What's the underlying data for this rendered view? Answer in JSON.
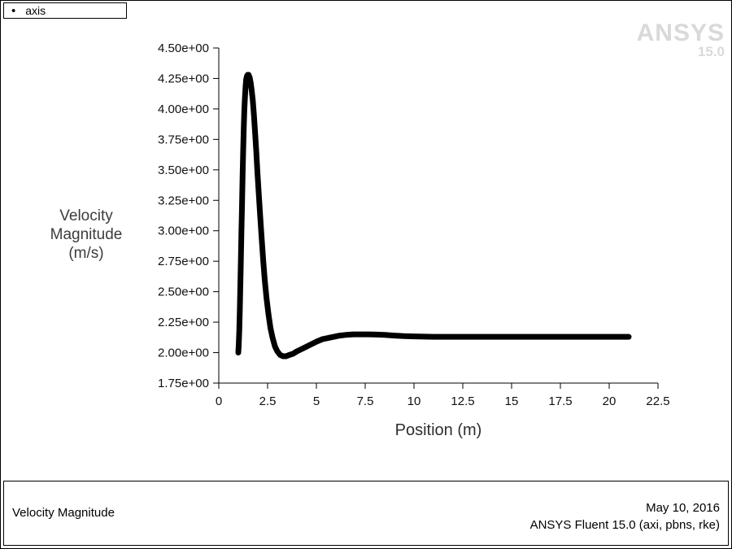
{
  "legend": {
    "marker": "•",
    "series_label": "axis"
  },
  "watermark": {
    "line1": "ANSYS",
    "line2": "15.0"
  },
  "axes": {
    "y_label_lines": [
      "Velocity",
      "Magnitude",
      "(m/s)"
    ],
    "x_label": "Position (m)",
    "y_ticks": [
      "1.75e+00",
      "2.00e+00",
      "2.25e+00",
      "2.50e+00",
      "2.75e+00",
      "3.00e+00",
      "3.25e+00",
      "3.50e+00",
      "3.75e+00",
      "4.00e+00",
      "4.25e+00",
      "4.50e+00"
    ],
    "x_ticks": [
      "0",
      "2.5",
      "5",
      "7.5",
      "10",
      "12.5",
      "15",
      "17.5",
      "20",
      "22.5"
    ]
  },
  "footer": {
    "left": "Velocity Magnitude",
    "date": "May 10, 2016",
    "app": "ANSYS Fluent 15.0 (axi, pbns, rke)"
  },
  "chart_data": {
    "type": "line",
    "title": "Velocity Magnitude",
    "xlabel": "Position (m)",
    "ylabel": "Velocity Magnitude (m/s)",
    "xlim": [
      0,
      22.5
    ],
    "ylim": [
      1.75,
      4.5
    ],
    "grid": false,
    "legend_position": "top-left",
    "x_tick_values": [
      0,
      2.5,
      5,
      7.5,
      10,
      12.5,
      15,
      17.5,
      20,
      22.5
    ],
    "y_tick_values": [
      1.75,
      2.0,
      2.25,
      2.5,
      2.75,
      3.0,
      3.25,
      3.5,
      3.75,
      4.0,
      4.25,
      4.5
    ],
    "series": [
      {
        "name": "axis",
        "color": "#000000",
        "points": [
          [
            1.0,
            2.0
          ],
          [
            1.02,
            2.06
          ],
          [
            1.05,
            2.18
          ],
          [
            1.08,
            2.36
          ],
          [
            1.1,
            2.52
          ],
          [
            1.13,
            2.74
          ],
          [
            1.16,
            2.98
          ],
          [
            1.19,
            3.22
          ],
          [
            1.22,
            3.46
          ],
          [
            1.25,
            3.66
          ],
          [
            1.28,
            3.84
          ],
          [
            1.31,
            3.99
          ],
          [
            1.34,
            4.1
          ],
          [
            1.37,
            4.18
          ],
          [
            1.4,
            4.24
          ],
          [
            1.44,
            4.27
          ],
          [
            1.48,
            4.28
          ],
          [
            1.53,
            4.28
          ],
          [
            1.58,
            4.26
          ],
          [
            1.63,
            4.22
          ],
          [
            1.68,
            4.16
          ],
          [
            1.74,
            4.07
          ],
          [
            1.8,
            3.95
          ],
          [
            1.86,
            3.81
          ],
          [
            1.92,
            3.65
          ],
          [
            1.98,
            3.48
          ],
          [
            2.05,
            3.3
          ],
          [
            2.12,
            3.12
          ],
          [
            2.2,
            2.93
          ],
          [
            2.28,
            2.75
          ],
          [
            2.36,
            2.59
          ],
          [
            2.45,
            2.44
          ],
          [
            2.55,
            2.31
          ],
          [
            2.65,
            2.2
          ],
          [
            2.76,
            2.12
          ],
          [
            2.88,
            2.05
          ],
          [
            3.0,
            2.01
          ],
          [
            3.15,
            1.98
          ],
          [
            3.3,
            1.97
          ],
          [
            3.45,
            1.97
          ],
          [
            3.6,
            1.98
          ],
          [
            3.8,
            1.99
          ],
          [
            4.0,
            2.01
          ],
          [
            4.25,
            2.03
          ],
          [
            4.5,
            2.05
          ],
          [
            4.75,
            2.07
          ],
          [
            5.0,
            2.09
          ],
          [
            5.3,
            2.11
          ],
          [
            5.6,
            2.12
          ],
          [
            5.9,
            2.13
          ],
          [
            6.2,
            2.14
          ],
          [
            6.5,
            2.145
          ],
          [
            6.9,
            2.15
          ],
          [
            7.3,
            2.15
          ],
          [
            7.7,
            2.15
          ],
          [
            8.1,
            2.148
          ],
          [
            8.5,
            2.145
          ],
          [
            9.0,
            2.14
          ],
          [
            9.5,
            2.135
          ],
          [
            10.0,
            2.133
          ],
          [
            10.5,
            2.131
          ],
          [
            11.0,
            2.13
          ],
          [
            12.0,
            2.13
          ],
          [
            13.0,
            2.13
          ],
          [
            14.0,
            2.13
          ],
          [
            15.0,
            2.13
          ],
          [
            16.0,
            2.13
          ],
          [
            17.0,
            2.13
          ],
          [
            18.0,
            2.13
          ],
          [
            19.0,
            2.13
          ],
          [
            20.0,
            2.13
          ],
          [
            21.0,
            2.13
          ]
        ]
      }
    ]
  }
}
